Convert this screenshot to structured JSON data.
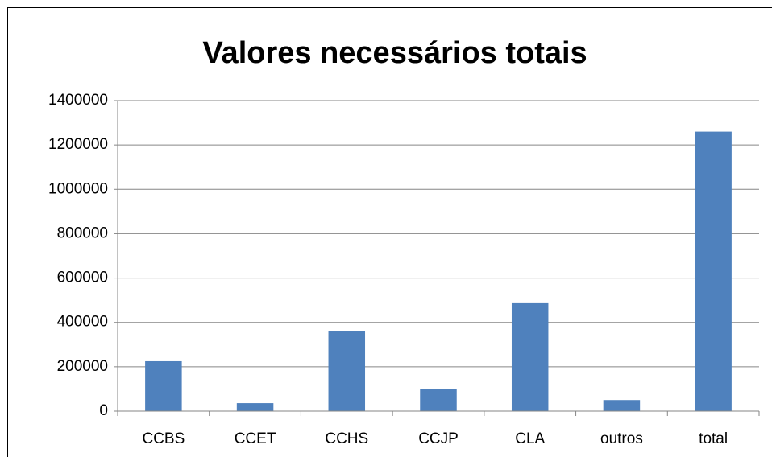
{
  "chart_data": {
    "type": "bar",
    "title": "Valores necessários totais",
    "categories": [
      "CCBS",
      "CCET",
      "CCHS",
      "CCJP",
      "CLA",
      "outros",
      "total"
    ],
    "values": [
      225000,
      36000,
      360000,
      100000,
      490000,
      50000,
      1260000
    ],
    "color": "#4f81bd",
    "ylim": [
      0,
      1400000
    ],
    "yticks": [
      0,
      200000,
      400000,
      600000,
      800000,
      1000000,
      1200000,
      1400000
    ],
    "grid": true
  }
}
